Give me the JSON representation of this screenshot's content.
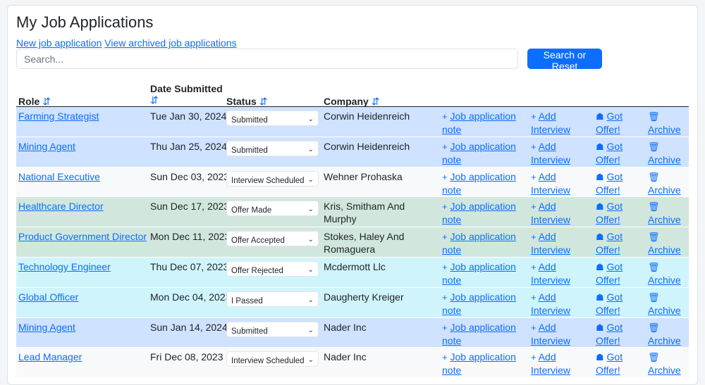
{
  "page": {
    "title": "My Job Applications"
  },
  "links": {
    "new": "New job application",
    "archived": "View archived job applications"
  },
  "search": {
    "placeholder": "Search...",
    "button": "Search or Reset"
  },
  "headers": {
    "role": "Role",
    "date": "Date Submitted",
    "status": "Status",
    "company": "Company",
    "sort_icon": "⇵"
  },
  "actions": {
    "note_plus": "+",
    "note": "Job application note",
    "interview_plus": "+",
    "interview": "Add Interview",
    "offer_icon": "☗",
    "offer": "Got Offer!",
    "archive_icon": "🗑",
    "archive": "Archive",
    "chevron": "⌄"
  },
  "rows": [
    {
      "role": "Farming Strategist",
      "date": "Tue Jan 30, 2024",
      "status": "Submitted",
      "company": "Corwin Heidenreich",
      "bg": "#cfe2ff"
    },
    {
      "role": "Mining Agent",
      "date": "Thu Jan 25, 2024",
      "status": "Submitted",
      "company": "Corwin Heidenreich",
      "bg": "#cfe2ff"
    },
    {
      "role": "National Executive",
      "date": "Sun Dec 03, 2023",
      "status": "Interview Scheduled",
      "company": "Wehner Prohaska",
      "bg": "#f8f9fa"
    },
    {
      "role": "Healthcare Director",
      "date": "Sun Dec 17, 2023",
      "status": "Offer Made",
      "company": "Kris, Smitham And Murphy",
      "bg": "#d1e7dd"
    },
    {
      "role": "Product Government Director",
      "date": "Mon Dec 11, 2023",
      "status": "Offer Accepted",
      "company": "Stokes, Haley And Romaguera",
      "bg": "#d1e7dd"
    },
    {
      "role": "Technology Engineer",
      "date": "Thu Dec 07, 2023",
      "status": "Offer Rejected",
      "company": "Mcdermott Llc",
      "bg": "#cff4fc"
    },
    {
      "role": "Global Officer",
      "date": "Mon Dec 04, 2023",
      "status": "I Passed",
      "company": "Daugherty Kreiger",
      "bg": "#cff4fc"
    },
    {
      "role": "Mining Agent",
      "date": "Sun Jan 14, 2024",
      "status": "Submitted",
      "company": "Nader Inc",
      "bg": "#cfe2ff"
    },
    {
      "role": "Lead Manager",
      "date": "Fri Dec 08, 2023",
      "status": "Interview Scheduled",
      "company": "Nader Inc",
      "bg": "#f8f9fa"
    }
  ]
}
